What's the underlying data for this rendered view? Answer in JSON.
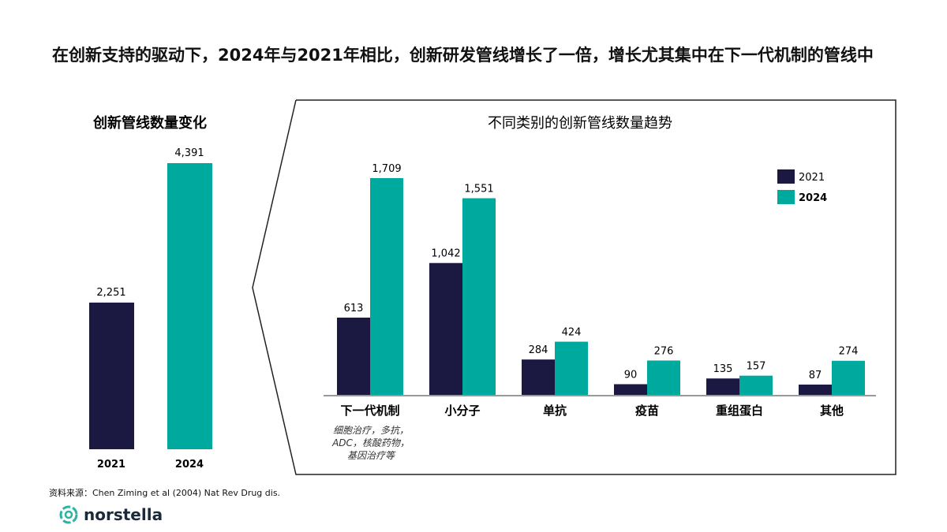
{
  "title": "在创新支持的驱动下，2024年与2021年相比，创新研发管线增长了一倍，增长尤其集中在下一代机制的管线中",
  "source": "资料来源：Chen Ziming et al (2004) Nat Rev Drug dis.",
  "logo_text": "norstella",
  "colors": {
    "2021": "#1b1942",
    "2024": "#00a99d"
  },
  "chart_data": [
    {
      "type": "bar",
      "title": "创新管线数量变化",
      "categories": [
        "2021",
        "2024"
      ],
      "values": [
        2251,
        4391
      ],
      "data_labels": [
        "2,251",
        "4,391"
      ]
    },
    {
      "type": "bar",
      "title": "不同类别的创新管线数量趋势",
      "categories": [
        "下一代机制",
        "小分子",
        "单抗",
        "疫苗",
        "重组蛋白",
        "其他"
      ],
      "category_note": "细胞治疗，多抗，ADC，核酸药物，基因治疗等",
      "legend": "top-right",
      "series": [
        {
          "name": "2021",
          "values": [
            613,
            1042,
            284,
            90,
            135,
            87
          ],
          "labels": [
            "613",
            "1,042",
            "284",
            "90",
            "135",
            "87"
          ]
        },
        {
          "name": "2024",
          "values": [
            1709,
            1551,
            424,
            276,
            157,
            274
          ],
          "labels": [
            "1,709",
            "1,551",
            "424",
            "276",
            "157",
            "274"
          ]
        }
      ]
    }
  ]
}
